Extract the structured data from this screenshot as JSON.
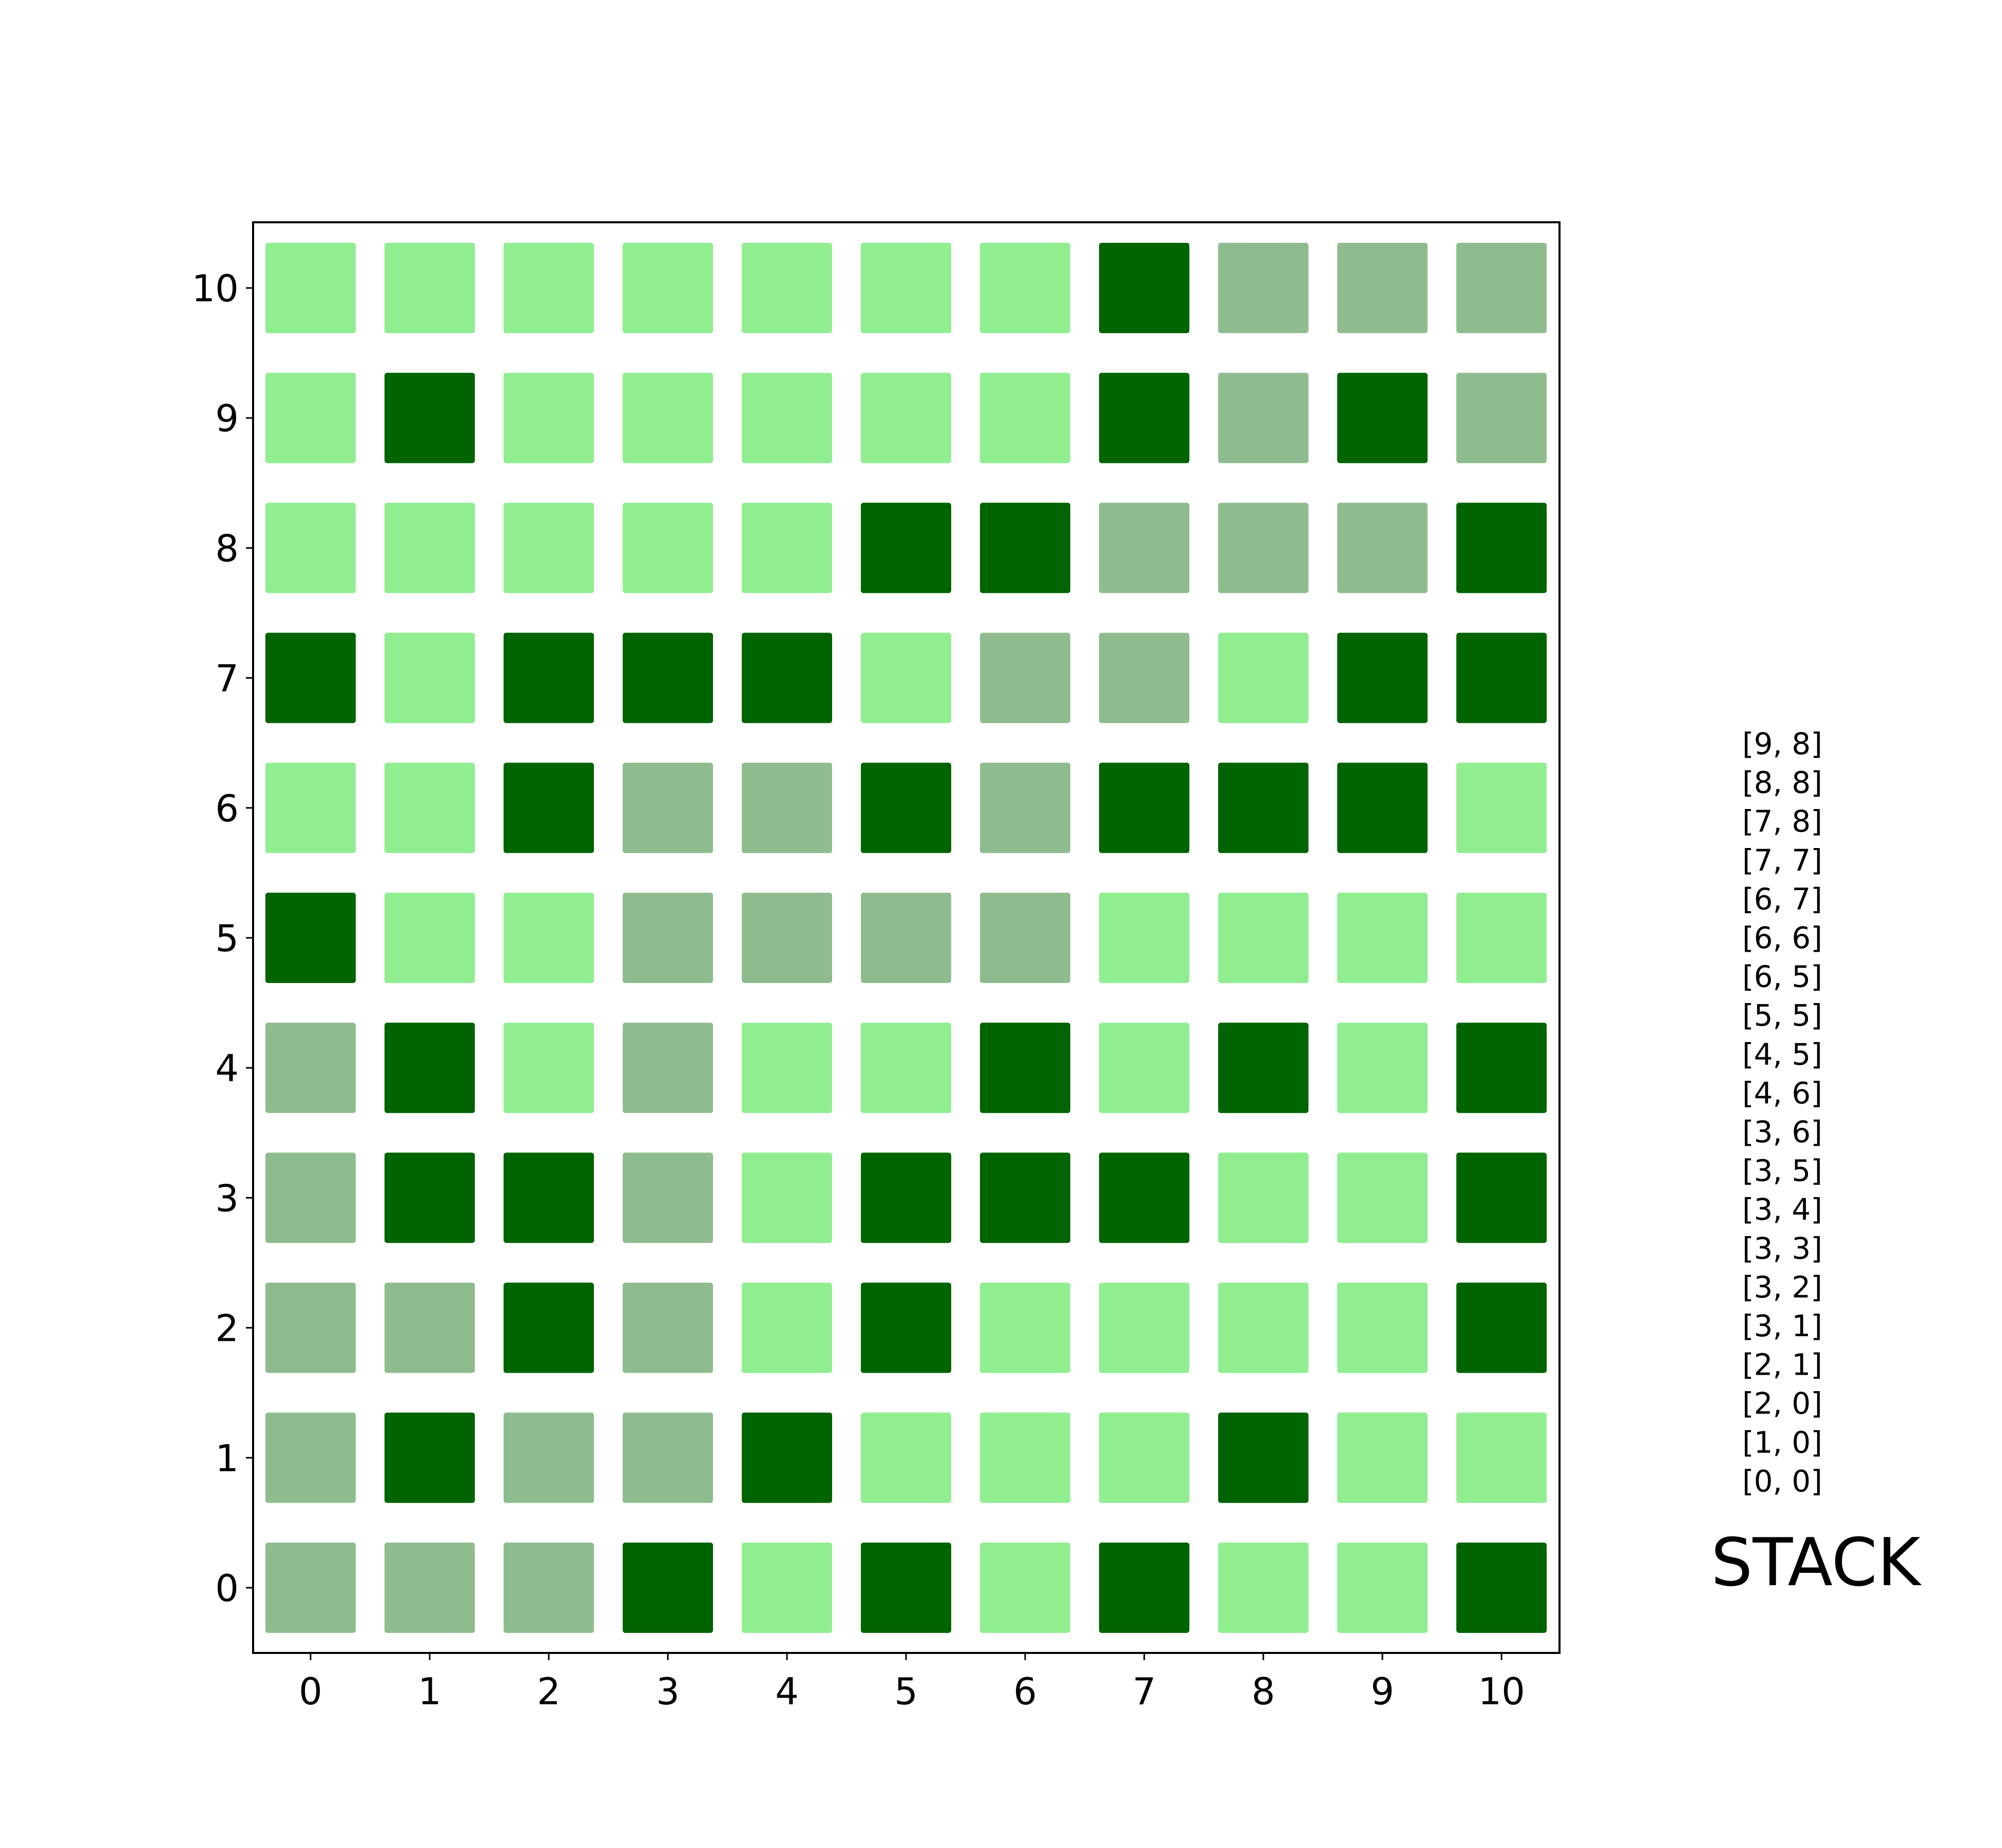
{
  "colors": {
    "light": "#90ee90",
    "mid": "#8fbc8f",
    "dark": "#006400",
    "frame": "#000000",
    "background": "#ffffff"
  },
  "board": {
    "x_ticks": [
      "0",
      "1",
      "2",
      "3",
      "4",
      "5",
      "6",
      "7",
      "8",
      "9",
      "10"
    ],
    "y_ticks": [
      "0",
      "1",
      "2",
      "3",
      "4",
      "5",
      "6",
      "7",
      "8",
      "9",
      "10"
    ],
    "rows_top_to_bottom": [
      [
        "light",
        "light",
        "light",
        "light",
        "light",
        "light",
        "light",
        "dark",
        "mid",
        "mid",
        "mid"
      ],
      [
        "light",
        "dark",
        "light",
        "light",
        "light",
        "light",
        "light",
        "dark",
        "mid",
        "dark",
        "mid"
      ],
      [
        "light",
        "light",
        "light",
        "light",
        "light",
        "dark",
        "dark",
        "mid",
        "mid",
        "mid",
        "dark"
      ],
      [
        "dark",
        "light",
        "dark",
        "dark",
        "dark",
        "light",
        "mid",
        "mid",
        "light",
        "dark",
        "dark"
      ],
      [
        "light",
        "light",
        "dark",
        "mid",
        "mid",
        "dark",
        "mid",
        "dark",
        "dark",
        "dark",
        "light"
      ],
      [
        "dark",
        "light",
        "light",
        "mid",
        "mid",
        "mid",
        "mid",
        "light",
        "light",
        "light",
        "light"
      ],
      [
        "mid",
        "dark",
        "light",
        "mid",
        "light",
        "light",
        "dark",
        "light",
        "dark",
        "light",
        "dark"
      ],
      [
        "mid",
        "dark",
        "dark",
        "mid",
        "light",
        "dark",
        "dark",
        "dark",
        "light",
        "light",
        "dark"
      ],
      [
        "mid",
        "mid",
        "dark",
        "mid",
        "light",
        "dark",
        "light",
        "light",
        "light",
        "light",
        "dark"
      ],
      [
        "mid",
        "dark",
        "mid",
        "mid",
        "dark",
        "light",
        "light",
        "light",
        "dark",
        "light",
        "light"
      ],
      [
        "mid",
        "mid",
        "mid",
        "dark",
        "light",
        "dark",
        "light",
        "dark",
        "light",
        "light",
        "dark"
      ]
    ]
  },
  "stack": {
    "title": "STACK",
    "entries_top_to_bottom": [
      "[9, 8]",
      "[8, 8]",
      "[7, 8]",
      "[7, 7]",
      "[6, 7]",
      "[6, 6]",
      "[6, 5]",
      "[5, 5]",
      "[4, 5]",
      "[4, 6]",
      "[3, 6]",
      "[3, 5]",
      "[3, 4]",
      "[3, 3]",
      "[3, 2]",
      "[3, 1]",
      "[2, 1]",
      "[2, 0]",
      "[1, 0]",
      "[0, 0]"
    ]
  }
}
